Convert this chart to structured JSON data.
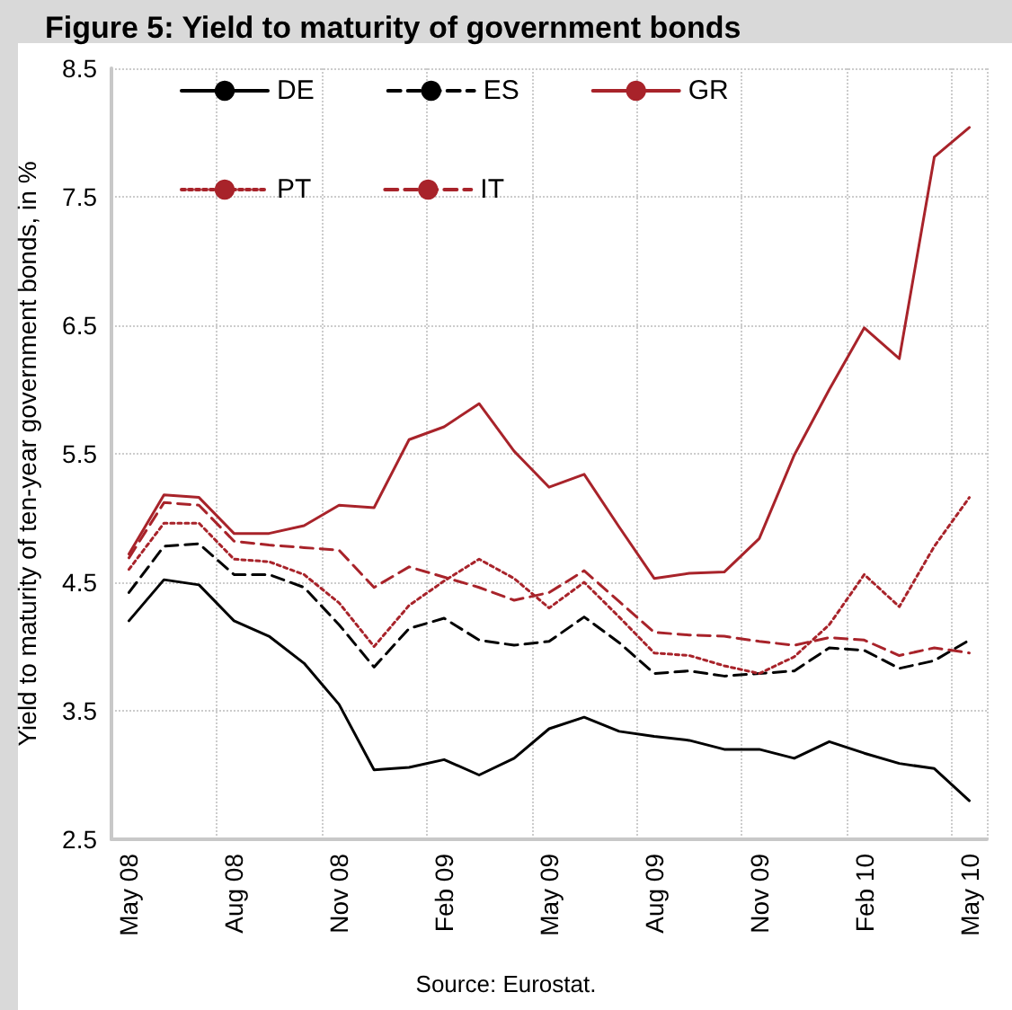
{
  "chart_data": {
    "type": "line",
    "title": "Figure 5: Yield to maturity of government bonds",
    "ylabel": "Yield to maturity of ten-year government bonds, in %",
    "categories": [
      "May 08",
      null,
      null,
      "Aug 08",
      null,
      null,
      "Nov 08",
      null,
      null,
      "Feb 09",
      null,
      null,
      "May 09",
      null,
      null,
      "Aug 09",
      null,
      null,
      "Nov 09",
      null,
      null,
      "Feb 10",
      null,
      null,
      "May 10"
    ],
    "series": [
      {
        "name": "DE",
        "color": "#000000",
        "line_style": "solid",
        "values": [
          4.2,
          4.52,
          4.48,
          4.2,
          4.08,
          3.87,
          3.55,
          3.04,
          3.06,
          3.12,
          3.0,
          3.13,
          3.36,
          3.45,
          3.34,
          3.3,
          3.27,
          3.2,
          3.2,
          3.13,
          3.26,
          3.17,
          3.09,
          3.05,
          2.8
        ]
      },
      {
        "name": "ES",
        "color": "#000000",
        "line_style": "dashed",
        "values": [
          4.42,
          4.78,
          4.8,
          4.56,
          4.56,
          4.46,
          4.17,
          3.84,
          4.14,
          4.22,
          4.05,
          4.01,
          4.04,
          4.23,
          4.03,
          3.79,
          3.81,
          3.77,
          3.79,
          3.81,
          3.99,
          3.97,
          3.83,
          3.89,
          4.05
        ]
      },
      {
        "name": "GR",
        "color": "#a8232a",
        "line_style": "solid",
        "values": [
          4.72,
          5.18,
          5.16,
          4.88,
          4.88,
          4.94,
          5.1,
          5.08,
          5.61,
          5.71,
          5.89,
          5.52,
          5.24,
          5.34,
          4.93,
          4.53,
          4.57,
          4.58,
          4.84,
          5.49,
          6.0,
          6.48,
          6.24,
          7.81,
          8.04
        ]
      },
      {
        "name": "PT",
        "color": "#a8232a",
        "line_style": "dotted",
        "values": [
          4.6,
          4.96,
          4.96,
          4.68,
          4.66,
          4.56,
          4.34,
          4.0,
          4.32,
          4.51,
          4.68,
          4.53,
          4.3,
          4.5,
          4.23,
          3.95,
          3.93,
          3.85,
          3.79,
          3.92,
          4.17,
          4.56,
          4.31,
          4.78,
          5.16
        ]
      },
      {
        "name": "IT",
        "color": "#a8232a",
        "line_style": "dashed",
        "values": [
          4.69,
          5.12,
          5.1,
          4.82,
          4.79,
          4.77,
          4.75,
          4.46,
          4.62,
          4.54,
          4.46,
          4.36,
          4.42,
          4.59,
          4.35,
          4.11,
          4.09,
          4.08,
          4.04,
          4.01,
          4.07,
          4.05,
          3.93,
          3.99,
          3.95
        ]
      }
    ],
    "ylim": [
      2.5,
      8.5
    ],
    "yticks": [
      2.5,
      3.5,
      4.5,
      5.5,
      6.5,
      7.5,
      8.5
    ],
    "grid": true,
    "legend": "top left",
    "marker": "none",
    "annotations": [
      "Source: Eurostat."
    ]
  }
}
